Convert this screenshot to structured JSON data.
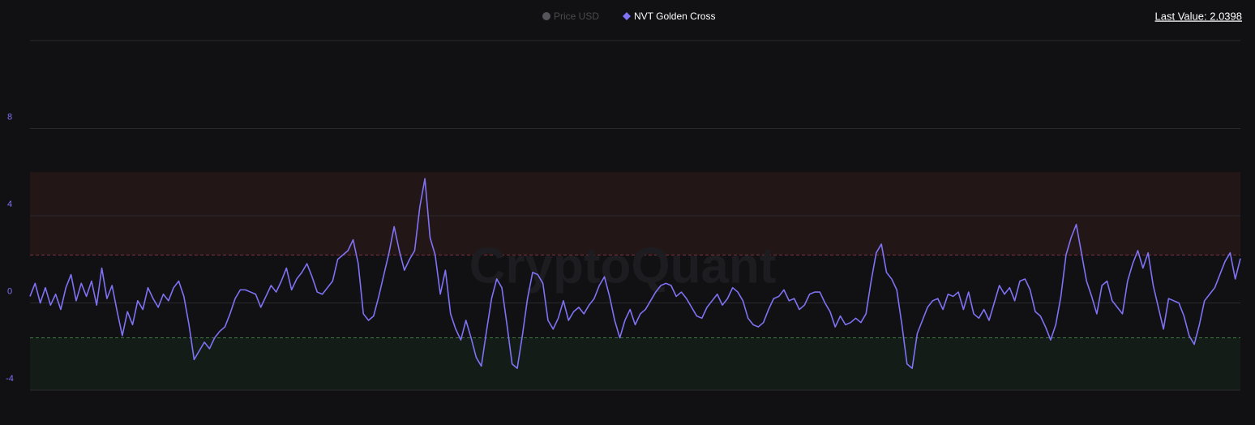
{
  "chart_data": {
    "type": "line",
    "legend": [
      {
        "name": "Price USD",
        "color": "#55555b",
        "active": false
      },
      {
        "name": "NVT Golden Cross",
        "color": "#7f72f5",
        "active": true
      }
    ],
    "last_value_label": "Last Value: 2.0398",
    "watermark": "CryptoQuant",
    "ylim": [
      -4,
      12
    ],
    "yticks": [
      -4,
      0,
      4,
      8
    ],
    "grid": true,
    "bands": [
      {
        "from": 2.2,
        "to": 6,
        "color": "#231617",
        "line_color": "#7d3443"
      },
      {
        "from": -4,
        "to": -1.6,
        "color": "#141c17",
        "line_color": "#3f7a45"
      }
    ],
    "series": [
      {
        "name": "NVT Golden Cross",
        "color": "#7f72f5",
        "values": [
          0.3,
          0.9,
          0,
          0.7,
          -0.1,
          0.4,
          -0.3,
          0.7,
          1.3,
          0.1,
          0.9,
          0.3,
          1.0,
          -0.1,
          1.6,
          0.2,
          0.8,
          -0.4,
          -1.5,
          -0.4,
          -1.0,
          0.1,
          -0.3,
          0.7,
          0.2,
          -0.2,
          0.4,
          0.1,
          0.7,
          1.0,
          0.3,
          -1.0,
          -2.6,
          -2.2,
          -1.8,
          -2.1,
          -1.6,
          -1.3,
          -1.1,
          -0.5,
          0.2,
          0.6,
          0.6,
          0.5,
          0.4,
          -0.2,
          0.3,
          0.8,
          0.5,
          1.0,
          1.6,
          0.6,
          1.1,
          1.4,
          1.8,
          1.2,
          0.5,
          0.4,
          0.7,
          1.0,
          2.0,
          2.2,
          2.4,
          2.9,
          1.8,
          -0.5,
          -0.8,
          -0.6,
          0.3,
          1.3,
          2.3,
          3.5,
          2.4,
          1.5,
          2.0,
          2.4,
          4.4,
          5.7,
          3.0,
          2.2,
          0.4,
          1.5,
          -0.5,
          -1.2,
          -1.7,
          -0.8,
          -1.6,
          -2.5,
          -2.9,
          -1.3,
          0.2,
          1.1,
          0.7,
          -1.0,
          -2.8,
          -3.0,
          -1.5,
          0.2,
          1.4,
          1.3,
          0.9,
          -0.8,
          -1.2,
          -0.7,
          0.1,
          -0.8,
          -0.4,
          -0.2,
          -0.5,
          -0.1,
          0.2,
          0.8,
          1.2,
          0.3,
          -0.8,
          -1.6,
          -0.8,
          -0.3,
          -1.0,
          -0.5,
          -0.3,
          0.1,
          0.5,
          0.8,
          0.9,
          0.8,
          0.3,
          0.5,
          0.2,
          -0.2,
          -0.6,
          -0.7,
          -0.2,
          0.1,
          0.4,
          -0.1,
          0.2,
          0.7,
          0.5,
          0.1,
          -0.7,
          -1.0,
          -1.1,
          -0.9,
          -0.3,
          0.2,
          0.3,
          0.6,
          0.1,
          0.2,
          -0.3,
          -0.1,
          0.4,
          0.5,
          0.5,
          0.0,
          -0.4,
          -1.1,
          -0.6,
          -1.0,
          -0.9,
          -0.7,
          -0.9,
          -0.5,
          1.0,
          2.3,
          2.7,
          1.4,
          1.1,
          0.6,
          -1.0,
          -2.8,
          -3.0,
          -1.4,
          -0.8,
          -0.2,
          0.1,
          0.2,
          -0.3,
          0.4,
          0.3,
          0.5,
          -0.3,
          0.5,
          -0.5,
          -0.7,
          -0.3,
          -0.8,
          0.0,
          0.8,
          0.4,
          0.7,
          0.1,
          1.0,
          1.1,
          0.6,
          -0.4,
          -0.6,
          -1.1,
          -1.7,
          -1.0,
          0.3,
          2.2,
          3.0,
          3.6,
          2.3,
          1.0,
          0.3,
          -0.5,
          0.8,
          1.0,
          0.1,
          -0.2,
          -0.5,
          1.0,
          1.8,
          2.4,
          1.6,
          2.3,
          0.8,
          -0.2,
          -1.2,
          0.2,
          0.1,
          0.0,
          -0.6,
          -1.5,
          -1.9,
          -1.0,
          0.1,
          0.4,
          0.7,
          1.3,
          1.9,
          2.3,
          1.1,
          2.0398
        ]
      }
    ]
  }
}
